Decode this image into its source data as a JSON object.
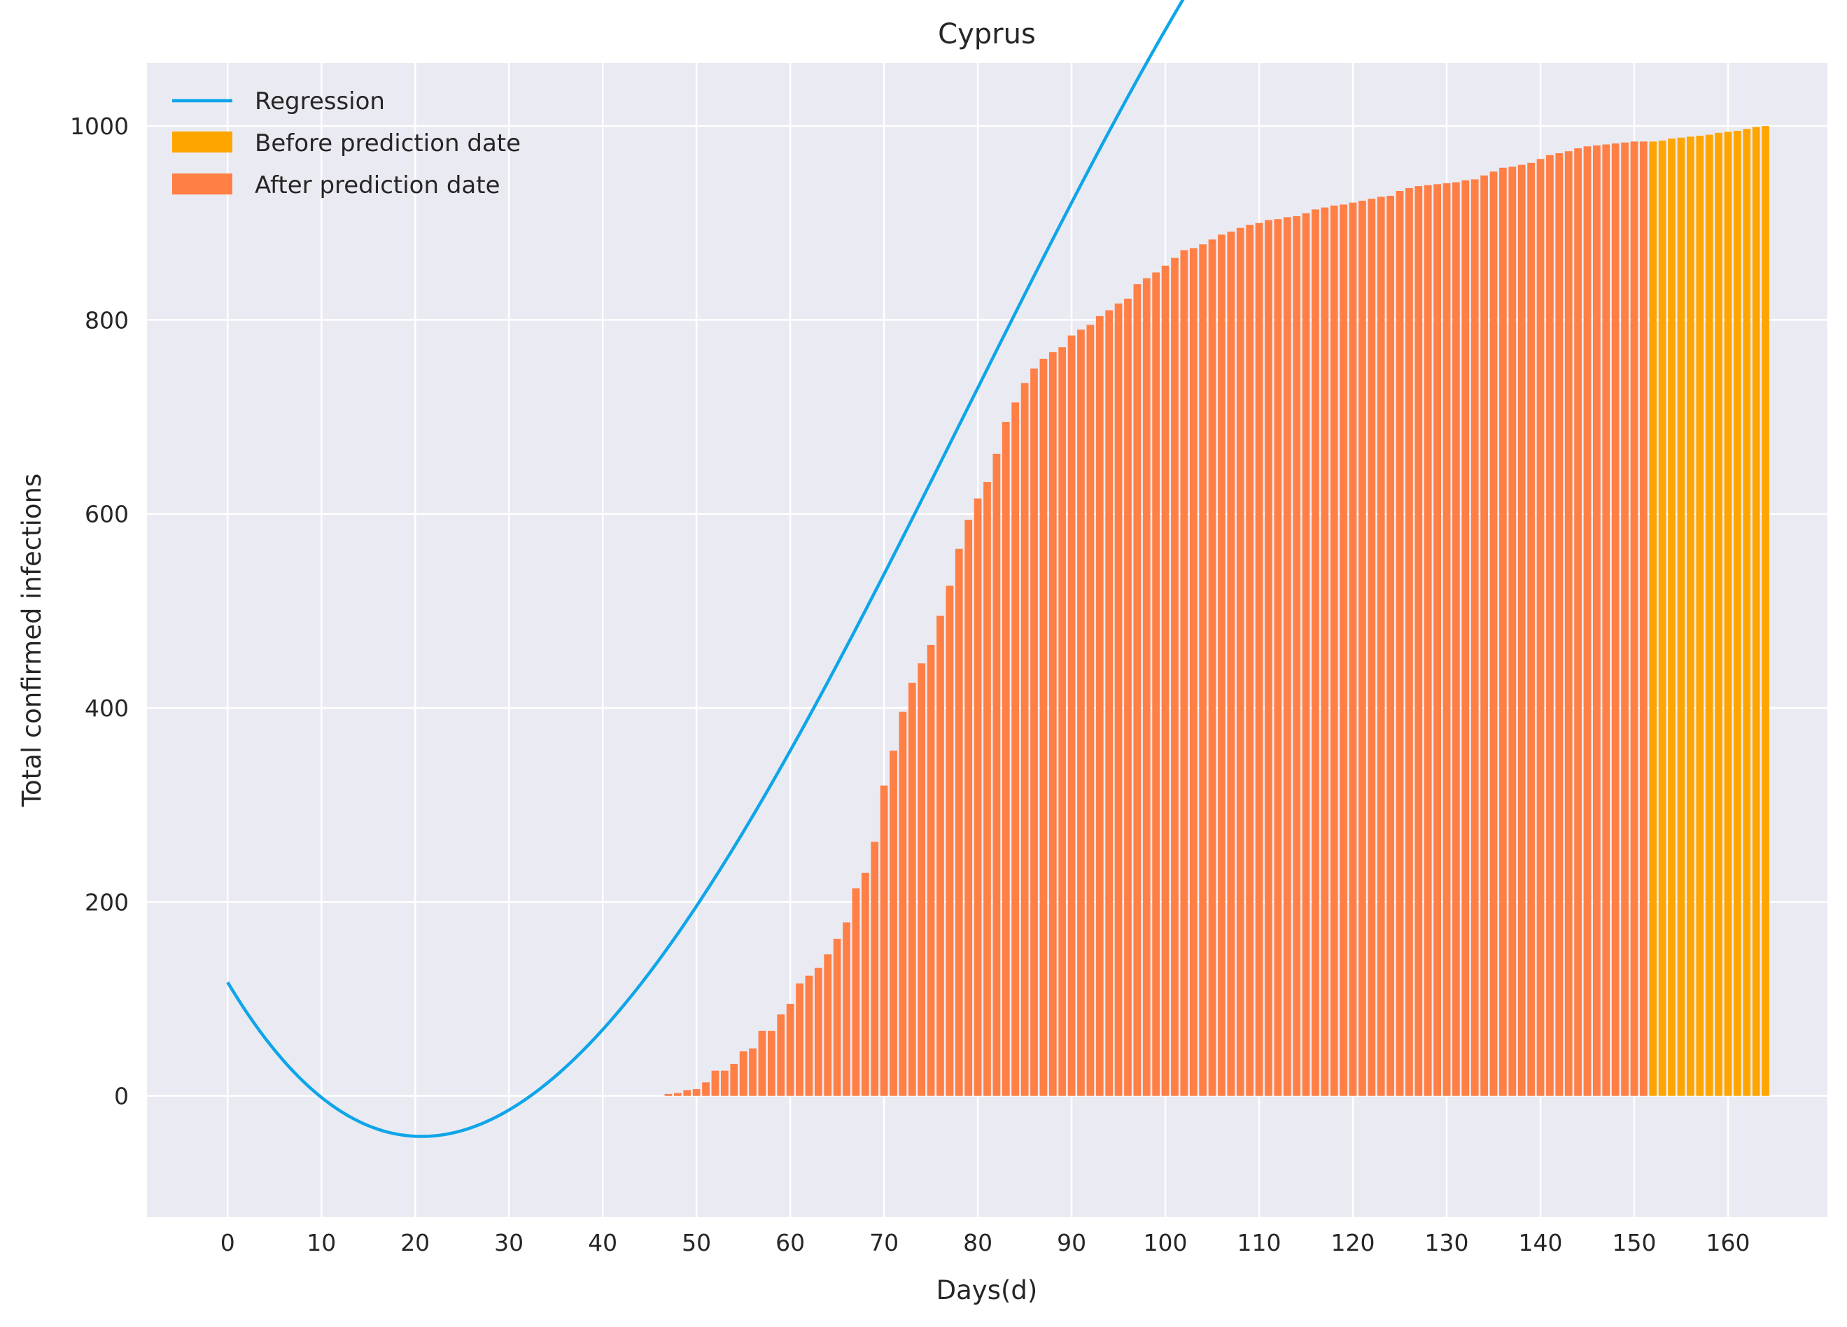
{
  "chart_data": {
    "type": "bar",
    "title": "Cyprus",
    "xlabel": "Days(d)",
    "ylabel": "Total confirmed infections",
    "xlim": [
      -8.6,
      170.6
    ],
    "ylim": [
      -125,
      1065
    ],
    "xticks": [
      0,
      10,
      20,
      30,
      40,
      50,
      60,
      70,
      80,
      90,
      100,
      110,
      120,
      130,
      140,
      150,
      160
    ],
    "yticks": [
      0,
      200,
      400,
      600,
      800,
      1000
    ],
    "grid": true,
    "legend_position": "top-left",
    "bar_start_day": 47,
    "prediction_day": 150,
    "series": [
      {
        "name": "Before prediction date",
        "kind": "bar",
        "color": "#FFA500"
      },
      {
        "name": "After prediction date",
        "kind": "bar",
        "color": "#FF7F45",
        "values": [
          2,
          3,
          6,
          7,
          14,
          26,
          26,
          33,
          46,
          49,
          67,
          67,
          84,
          95,
          116,
          124,
          132,
          146,
          162,
          179,
          214,
          230,
          262,
          320,
          356,
          396,
          426,
          446,
          465,
          495,
          526,
          564,
          594,
          616,
          633,
          662,
          695,
          715,
          735,
          750,
          760,
          767,
          772,
          784,
          790,
          795,
          804,
          810,
          817,
          822,
          837,
          843,
          849,
          856,
          864,
          872,
          874,
          878,
          883,
          888,
          891,
          895,
          898,
          900,
          903,
          904,
          906,
          907,
          910,
          914,
          916,
          918,
          919,
          921,
          923,
          925,
          927,
          928,
          933,
          936,
          938,
          939,
          940,
          941,
          942,
          944,
          945,
          949,
          953,
          957,
          958,
          960,
          962,
          966,
          970,
          972,
          974,
          977,
          979,
          980,
          981,
          982,
          983,
          984,
          984
        ]
      },
      {
        "name": "Before prediction date",
        "kind": "bar",
        "color": "#FFA500",
        "values": [
          984,
          985,
          987,
          988,
          989,
          990,
          991,
          993,
          994,
          995,
          997,
          999,
          1000
        ]
      },
      {
        "name": "Regression",
        "kind": "line",
        "color": "#0EA5E9",
        "x_range": [
          0,
          162
        ],
        "polynomial_coefficients": [
          117.21,
          -16.18,
          0.45,
          -0.0019
        ]
      }
    ]
  }
}
